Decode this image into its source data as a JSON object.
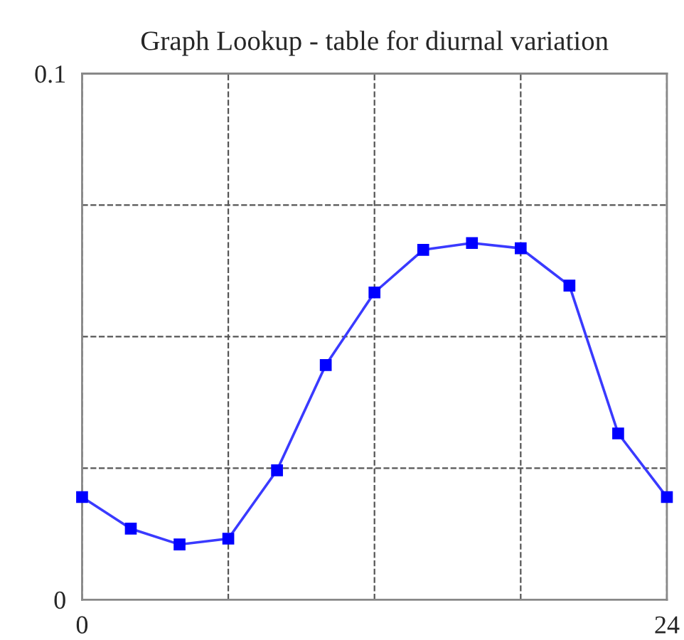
{
  "chart_data": {
    "type": "line",
    "title": "Graph Lookup - table for diurnal variation",
    "x": [
      0,
      2,
      4,
      6,
      8,
      10,
      12,
      14,
      16,
      18,
      20,
      22,
      24
    ],
    "series": [
      {
        "color": "#3a3aff",
        "values": [
          0.0195,
          0.0135,
          0.0105,
          0.0116,
          0.0246,
          0.0446,
          0.0584,
          0.0665,
          0.0678,
          0.0668,
          0.0597,
          0.0316,
          0.0195
        ]
      }
    ],
    "xlim": [
      0,
      24
    ],
    "ylim": [
      0,
      0.1
    ],
    "xticks": [
      0,
      {
        "value": 6,
        "label": null
      },
      {
        "value": 12,
        "label": null
      },
      {
        "value": 18,
        "label": null
      },
      24
    ],
    "yticks": [
      0,
      {
        "value": 0.025,
        "label": null
      },
      {
        "value": 0.05,
        "label": null
      },
      {
        "value": 0.075,
        "label": null
      },
      0.1
    ],
    "grid": true,
    "marker": "square",
    "line_style": "solid"
  }
}
